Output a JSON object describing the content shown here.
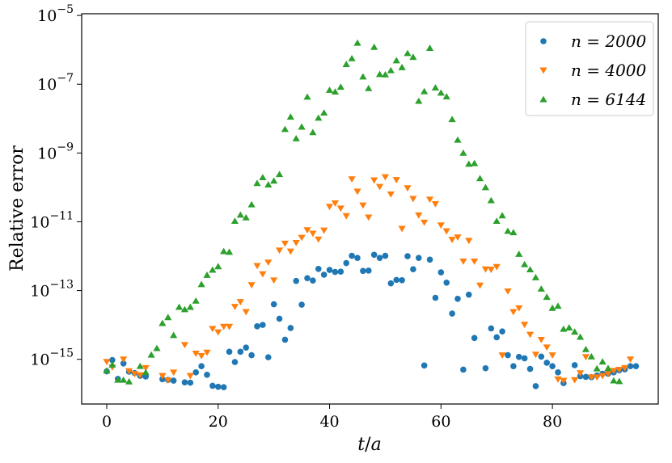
{
  "chart_data": {
    "type": "scatter",
    "title": "",
    "xlabel": "t/a",
    "ylabel": "Relative error",
    "xlim": [
      -4.5,
      99
    ],
    "ylim_log10": [
      -16.3,
      -4.95
    ],
    "yscale": "log",
    "grid": false,
    "legend_position": "top-right",
    "x_ticks": [
      {
        "value": 0,
        "label": "0"
      },
      {
        "value": 20,
        "label": "20"
      },
      {
        "value": 40,
        "label": "40"
      },
      {
        "value": 60,
        "label": "60"
      },
      {
        "value": 80,
        "label": "80"
      }
    ],
    "y_ticks": [
      {
        "exp": -15,
        "label_base": "10",
        "label_exp": "−15"
      },
      {
        "exp": -13,
        "label_base": "10",
        "label_exp": "−13"
      },
      {
        "exp": -11,
        "label_base": "10",
        "label_exp": "−11"
      },
      {
        "exp": -9,
        "label_base": "10",
        "label_exp": "−9"
      },
      {
        "exp": -7,
        "label_base": "10",
        "label_exp": "−7"
      },
      {
        "exp": -5,
        "label_base": "10",
        "label_exp": "−5"
      }
    ],
    "series": [
      {
        "name": "n = 2000",
        "marker": "circle",
        "color": "#1f77b4",
        "points": [
          [
            0,
            -15.35
          ],
          [
            1,
            -15.02
          ],
          [
            2,
            -15.57
          ],
          [
            3,
            -15.12
          ],
          [
            4,
            -15.36
          ],
          [
            5,
            -15.4
          ],
          [
            6,
            -15.48
          ],
          [
            7,
            -15.5
          ],
          [
            10,
            -15.58
          ],
          [
            11,
            -15.6
          ],
          [
            12,
            -15.62
          ],
          [
            14,
            -15.67
          ],
          [
            15,
            -15.68
          ],
          [
            16,
            -15.38
          ],
          [
            17,
            -15.2
          ],
          [
            18,
            -15.45
          ],
          [
            19,
            -15.77
          ],
          [
            20,
            -15.8
          ],
          [
            21,
            -15.81
          ],
          [
            22,
            -14.78
          ],
          [
            23,
            -15.08
          ],
          [
            24,
            -14.78
          ],
          [
            25,
            -14.66
          ],
          [
            26,
            -14.88
          ],
          [
            27,
            -14.04
          ],
          [
            28,
            -14.0
          ],
          [
            29,
            -14.94
          ],
          [
            30,
            -13.4
          ],
          [
            31,
            -13.82
          ],
          [
            32,
            -14.43
          ],
          [
            33,
            -14.09
          ],
          [
            34,
            -12.72
          ],
          [
            35,
            -13.41
          ],
          [
            36,
            -12.64
          ],
          [
            37,
            -12.71
          ],
          [
            38,
            -12.37
          ],
          [
            39,
            -12.54
          ],
          [
            40,
            -12.4
          ],
          [
            41,
            -12.46
          ],
          [
            42,
            -12.45
          ],
          [
            43,
            -12.2
          ],
          [
            44,
            -11.99
          ],
          [
            45,
            -12.05
          ],
          [
            46,
            -12.43
          ],
          [
            47,
            -12.42
          ],
          [
            48,
            -11.96
          ],
          [
            49,
            -12.05
          ],
          [
            50,
            -11.99
          ],
          [
            51,
            -12.79
          ],
          [
            52,
            -12.69
          ],
          [
            53,
            -12.7
          ],
          [
            54,
            -12.0
          ],
          [
            55,
            -12.38
          ],
          [
            56,
            -12.05
          ],
          [
            57,
            -15.18
          ],
          [
            58,
            -12.1
          ],
          [
            59,
            -13.21
          ],
          [
            60,
            -12.47
          ],
          [
            61,
            -12.77
          ],
          [
            62,
            -13.67
          ],
          [
            63,
            -13.24
          ],
          [
            64,
            -15.3
          ],
          [
            65,
            -13.12
          ],
          [
            66,
            -14.38
          ],
          [
            68,
            -15.26
          ],
          [
            69,
            -14.1
          ],
          [
            70,
            -14.36
          ],
          [
            71,
            -14.19
          ],
          [
            72,
            -14.88
          ],
          [
            73,
            -15.2
          ],
          [
            74,
            -14.93
          ],
          [
            75,
            -14.97
          ],
          [
            76,
            -15.28
          ],
          [
            77,
            -15.78
          ],
          [
            78,
            -14.92
          ],
          [
            79,
            -15.1
          ],
          [
            80,
            -15.2
          ],
          [
            81,
            -15.38
          ],
          [
            82,
            -15.69
          ],
          [
            84,
            -15.17
          ],
          [
            85,
            -15.49
          ],
          [
            86,
            -15.51
          ],
          [
            87,
            -15.52
          ],
          [
            88,
            -15.47
          ],
          [
            89,
            -15.42
          ],
          [
            90,
            -15.42
          ],
          [
            91,
            -15.38
          ],
          [
            92,
            -15.32
          ],
          [
            93,
            -15.29
          ],
          [
            94,
            -15.2
          ],
          [
            95,
            -15.2
          ]
        ]
      },
      {
        "name": "n = 4000",
        "marker": "triangle-down",
        "color": "#ff7f0e",
        "points": [
          [
            0,
            -15.07
          ],
          [
            1,
            -15.23
          ],
          [
            3,
            -15.0
          ],
          [
            4,
            -15.34
          ],
          [
            5,
            -15.42
          ],
          [
            6,
            -15.46
          ],
          [
            7,
            -15.25
          ],
          [
            10,
            -15.48
          ],
          [
            11,
            -15.61
          ],
          [
            12,
            -15.38
          ],
          [
            14,
            -14.58
          ],
          [
            15,
            -15.48
          ],
          [
            16,
            -14.83
          ],
          [
            17,
            -14.9
          ],
          [
            18,
            -14.8
          ],
          [
            19,
            -14.11
          ],
          [
            20,
            -14.21
          ],
          [
            21,
            -14.05
          ],
          [
            22,
            -14.05
          ],
          [
            23,
            -13.47
          ],
          [
            24,
            -13.33
          ],
          [
            25,
            -13.62
          ],
          [
            26,
            -12.84
          ],
          [
            27,
            -12.28
          ],
          [
            28,
            -12.52
          ],
          [
            29,
            -12.18
          ],
          [
            30,
            -12.7
          ],
          [
            31,
            -11.83
          ],
          [
            32,
            -11.63
          ],
          [
            33,
            -11.86
          ],
          [
            34,
            -11.61
          ],
          [
            35,
            -11.46
          ],
          [
            36,
            -11.24
          ],
          [
            37,
            -11.34
          ],
          [
            38,
            -11.51
          ],
          [
            39,
            -11.25
          ],
          [
            40,
            -10.56
          ],
          [
            41,
            -10.46
          ],
          [
            42,
            -10.61
          ],
          [
            43,
            -10.83
          ],
          [
            44,
            -9.76
          ],
          [
            45,
            -10.12
          ],
          [
            46,
            -10.52
          ],
          [
            47,
            -10.87
          ],
          [
            48,
            -9.79
          ],
          [
            49,
            -9.98
          ],
          [
            50,
            -9.7
          ],
          [
            51,
            -10.2
          ],
          [
            52,
            -9.78
          ],
          [
            53,
            -11.2
          ],
          [
            54,
            -10.02
          ],
          [
            55,
            -10.33
          ],
          [
            56,
            -10.81
          ],
          [
            57,
            -11.02
          ],
          [
            58,
            -10.35
          ],
          [
            59,
            -10.48
          ],
          [
            60,
            -11.1
          ],
          [
            61,
            -11.27
          ],
          [
            62,
            -11.52
          ],
          [
            63,
            -11.45
          ],
          [
            64,
            -12.15
          ],
          [
            65,
            -11.55
          ],
          [
            66,
            -12.15
          ],
          [
            67,
            -12.85
          ],
          [
            68,
            -12.38
          ],
          [
            69,
            -12.39
          ],
          [
            70,
            -12.31
          ],
          [
            71,
            -14.88
          ],
          [
            72,
            -13.02
          ],
          [
            73,
            -13.62
          ],
          [
            74,
            -13.51
          ],
          [
            75,
            -13.99
          ],
          [
            76,
            -14.28
          ],
          [
            77,
            -14.86
          ],
          [
            78,
            -14.43
          ],
          [
            79,
            -14.65
          ],
          [
            80,
            -14.88
          ],
          [
            81,
            -15.58
          ],
          [
            82,
            -15.62
          ],
          [
            84,
            -15.6
          ],
          [
            85,
            -15.4
          ],
          [
            86,
            -14.93
          ],
          [
            87,
            -15.52
          ],
          [
            88,
            -15.52
          ],
          [
            89,
            -15.48
          ],
          [
            90,
            -15.42
          ],
          [
            91,
            -15.33
          ],
          [
            92,
            -15.3
          ],
          [
            93,
            -15.25
          ],
          [
            94,
            -15.0
          ]
        ]
      },
      {
        "name": "n = 6144",
        "marker": "triangle-up",
        "color": "#2ca02c",
        "points": [
          [
            0,
            -15.33
          ],
          [
            1,
            -15.16
          ],
          [
            2,
            -15.6
          ],
          [
            3,
            -15.6
          ],
          [
            4,
            -15.65
          ],
          [
            6,
            -15.2
          ],
          [
            7,
            -15.38
          ],
          [
            8,
            -14.87
          ],
          [
            9,
            -14.68
          ],
          [
            10,
            -13.95
          ],
          [
            11,
            -13.78
          ],
          [
            12,
            -14.3
          ],
          [
            13,
            -13.48
          ],
          [
            14,
            -13.55
          ],
          [
            15,
            -13.48
          ],
          [
            16,
            -13.3
          ],
          [
            17,
            -12.82
          ],
          [
            18,
            -12.55
          ],
          [
            19,
            -12.4
          ],
          [
            20,
            -12.3
          ],
          [
            21,
            -11.86
          ],
          [
            22,
            -11.88
          ],
          [
            23,
            -10.98
          ],
          [
            24,
            -10.8
          ],
          [
            25,
            -10.88
          ],
          [
            26,
            -10.5
          ],
          [
            27,
            -9.88
          ],
          [
            28,
            -9.71
          ],
          [
            29,
            -9.92
          ],
          [
            30,
            -9.81
          ],
          [
            31,
            -9.62
          ],
          [
            32,
            -8.31
          ],
          [
            33,
            -7.95
          ],
          [
            34,
            -8.58
          ],
          [
            35,
            -8.24
          ],
          [
            36,
            -7.37
          ],
          [
            37,
            -8.4
          ],
          [
            38,
            -7.98
          ],
          [
            39,
            -7.83
          ],
          [
            40,
            -7.17
          ],
          [
            41,
            -7.22
          ],
          [
            42,
            -7.08
          ],
          [
            43,
            -6.42
          ],
          [
            44,
            -6.25
          ],
          [
            45,
            -5.8
          ],
          [
            46,
            -6.78
          ],
          [
            47,
            -7.12
          ],
          [
            48,
            -5.92
          ],
          [
            49,
            -6.71
          ],
          [
            50,
            -6.72
          ],
          [
            51,
            -6.6
          ],
          [
            52,
            -6.31
          ],
          [
            53,
            -6.51
          ],
          [
            54,
            -6.1
          ],
          [
            55,
            -6.21
          ],
          [
            56,
            -7.49
          ],
          [
            57,
            -7.21
          ],
          [
            58,
            -5.95
          ],
          [
            59,
            -7.1
          ],
          [
            60,
            -7.25
          ],
          [
            61,
            -7.36
          ],
          [
            62,
            -8.02
          ],
          [
            63,
            -8.62
          ],
          [
            64,
            -9.0
          ],
          [
            65,
            -9.32
          ],
          [
            66,
            -9.3
          ],
          [
            67,
            -9.74
          ],
          [
            68,
            -10.0
          ],
          [
            69,
            -10.38
          ],
          [
            70,
            -10.98
          ],
          [
            71,
            -10.82
          ],
          [
            72,
            -11.27
          ],
          [
            73,
            -11.31
          ],
          [
            74,
            -11.94
          ],
          [
            75,
            -12.24
          ],
          [
            76,
            -12.39
          ],
          [
            77,
            -12.62
          ],
          [
            78,
            -12.95
          ],
          [
            79,
            -13.19
          ],
          [
            80,
            -13.51
          ],
          [
            81,
            -13.45
          ],
          [
            82,
            -14.12
          ],
          [
            83,
            -14.08
          ],
          [
            84,
            -14.2
          ],
          [
            85,
            -14.35
          ],
          [
            86,
            -14.71
          ],
          [
            87,
            -14.92
          ],
          [
            88,
            -15.27
          ],
          [
            89,
            -15.07
          ],
          [
            90,
            -15.26
          ],
          [
            91,
            -15.62
          ],
          [
            92,
            -15.64
          ]
        ]
      }
    ]
  }
}
